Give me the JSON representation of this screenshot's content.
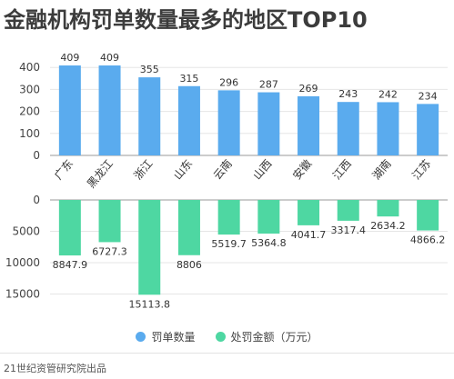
{
  "title": "金融机构罚单数量最多的地区TOP10",
  "source": "21世纪资管研究院出品",
  "colors": {
    "count": "#5aabee",
    "amount": "#4ed7a2"
  },
  "chart_data": [
    {
      "type": "bar",
      "categories": [
        "广东",
        "黑龙江",
        "浙江",
        "山东",
        "云南",
        "山西",
        "安徽",
        "江西",
        "湖南",
        "江苏"
      ],
      "series": [
        {
          "name": "罚单数量",
          "values": [
            409,
            409,
            355,
            315,
            296,
            287,
            269,
            243,
            242,
            234
          ]
        }
      ],
      "yticks": [
        "0",
        "100",
        "200",
        "300",
        "400"
      ],
      "ylim": [
        0,
        450
      ],
      "grid": true
    },
    {
      "type": "bar",
      "categories": [
        "广东",
        "黑龙江",
        "浙江",
        "山东",
        "云南",
        "山西",
        "安徽",
        "江西",
        "湖南",
        "江苏"
      ],
      "series": [
        {
          "name": "处罚金额（万元）",
          "values": [
            8847.9,
            6727.3,
            15113.8,
            8806,
            5519.7,
            5364.8,
            4041.7,
            3317.4,
            2634.2,
            4866.2
          ]
        }
      ],
      "value_labels": [
        "8847.9",
        "6727.3",
        "15113.8",
        "8806",
        "5519.7",
        "5364.8",
        "4041.7",
        "3317.4",
        "2634.2",
        "4866.2"
      ],
      "yticks": [
        "0",
        "5000",
        "10000",
        "15000"
      ],
      "ylim": [
        0,
        17000
      ],
      "direction": "downward",
      "grid": true
    }
  ],
  "legend": [
    {
      "label": "罚单数量",
      "color": "#5aabee"
    },
    {
      "label": "处罚金额（万元）",
      "color": "#4ed7a2"
    }
  ]
}
